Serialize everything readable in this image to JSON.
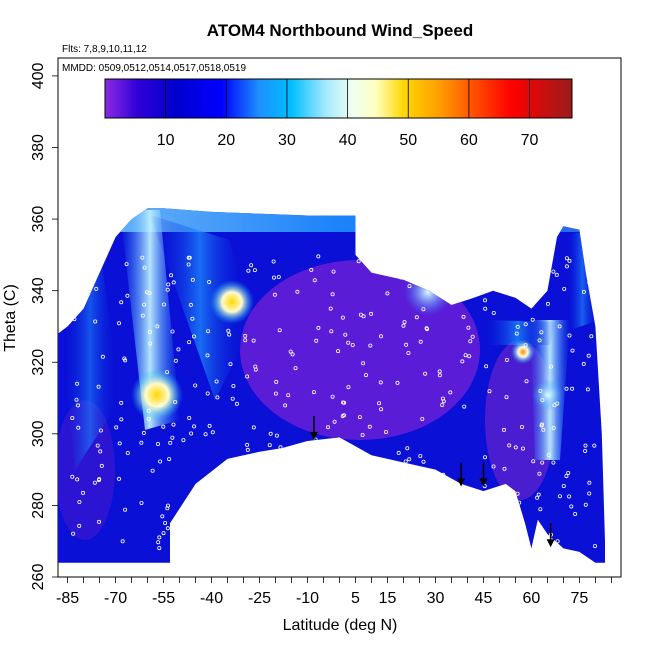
{
  "chart_data": {
    "type": "heatmap",
    "title": "ATOM4 Northbound Wind_Speed",
    "subtitle_flights": "Flts: 7,8,9,10,11,12",
    "subtitle_dates": "MMDD: 0509,0512,0514,0517,0518,0519",
    "xlabel": "Latitude (deg N)",
    "ylabel": "Theta (C)",
    "xlim": [
      -88,
      88
    ],
    "ylim": [
      260,
      405
    ],
    "x_ticks": [
      -85,
      -70,
      -55,
      -40,
      -25,
      -10,
      5,
      15,
      30,
      45,
      60,
      75
    ],
    "y_ticks": [
      260,
      280,
      300,
      320,
      340,
      360,
      380,
      400
    ],
    "colorbar": {
      "range": [
        0,
        77
      ],
      "ticks": [
        10,
        20,
        30,
        40,
        50,
        60,
        70
      ],
      "colors": [
        "#8a2be2",
        "#0000cd",
        "#1e90ff",
        "#00bfff",
        "#e0ffff",
        "#ffffe0",
        "#ffd700",
        "#ff8c00",
        "#ff0000",
        "#b22222",
        "#8b1a1a"
      ]
    },
    "series": [
      {
        "name": "wind_speed",
        "values": [
          {
            "lat": -85,
            "theta": 290,
            "speed": 14
          },
          {
            "lat": -75,
            "theta": 320,
            "speed": 18
          },
          {
            "lat": -65,
            "theta": 340,
            "speed": 26
          },
          {
            "lat": -60,
            "theta": 355,
            "speed": 28
          },
          {
            "lat": -56,
            "theta": 310,
            "speed": 44
          },
          {
            "lat": -50,
            "theta": 300,
            "speed": 10
          },
          {
            "lat": -40,
            "theta": 320,
            "speed": 24
          },
          {
            "lat": -36,
            "theta": 335,
            "speed": 46
          },
          {
            "lat": -30,
            "theta": 310,
            "speed": 14
          },
          {
            "lat": -20,
            "theta": 320,
            "speed": 6
          },
          {
            "lat": -10,
            "theta": 310,
            "speed": 4
          },
          {
            "lat": 0,
            "theta": 325,
            "speed": 3
          },
          {
            "lat": 10,
            "theta": 320,
            "speed": 6
          },
          {
            "lat": 20,
            "theta": 335,
            "speed": 20
          },
          {
            "lat": 27,
            "theta": 338,
            "speed": 36
          },
          {
            "lat": 35,
            "theta": 320,
            "speed": 8
          },
          {
            "lat": 45,
            "theta": 310,
            "speed": 18
          },
          {
            "lat": 50,
            "theta": 325,
            "speed": 30
          },
          {
            "lat": 55,
            "theta": 322,
            "speed": 58
          },
          {
            "lat": 62,
            "theta": 305,
            "speed": 40
          },
          {
            "lat": 70,
            "theta": 330,
            "speed": 12
          },
          {
            "lat": 78,
            "theta": 300,
            "speed": 10
          }
        ]
      }
    ],
    "arrows_lat": [
      -8,
      38,
      45,
      66
    ]
  }
}
